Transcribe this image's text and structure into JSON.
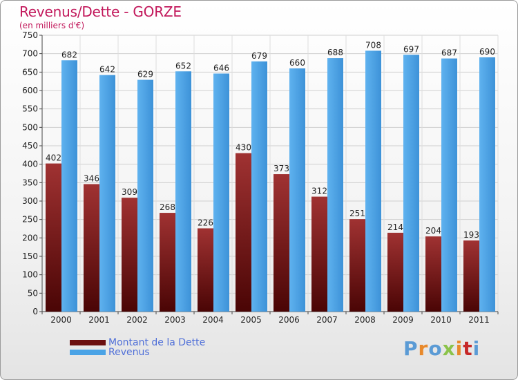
{
  "header": {
    "title": "Revenus/Dette - GORZE",
    "subtitle": "(en milliers d'€)"
  },
  "logo": {
    "text": "Proxiti",
    "letter_colors": [
      "#5b9bd5",
      "#e8892b",
      "#5b9bd5",
      "#8bc34a",
      "#e8892b",
      "#c62828",
      "#5b9bd5"
    ]
  },
  "colors": {
    "dette": "#7a1717",
    "revenus": "#4aa3e6",
    "axis_text": "#222222",
    "title": "#c2185b",
    "legend_text": "#4f6fd8"
  },
  "chart_data": {
    "type": "bar",
    "categories": [
      "2000",
      "2001",
      "2002",
      "2003",
      "2004",
      "2005",
      "2006",
      "2007",
      "2008",
      "2009",
      "2010",
      "2011"
    ],
    "series": [
      {
        "name": "Montant de la Dette",
        "values": [
          402,
          346,
          309,
          268,
          226,
          430,
          373,
          312,
          251,
          214,
          204,
          193
        ]
      },
      {
        "name": "Revenus",
        "values": [
          682,
          642,
          629,
          652,
          646,
          679,
          660,
          688,
          708,
          697,
          687,
          690
        ]
      }
    ],
    "title": "Revenus/Dette - GORZE",
    "ylabel": "(en milliers d'€)",
    "ylim": [
      0,
      750
    ],
    "yticks": [
      0,
      50,
      100,
      150,
      200,
      250,
      300,
      350,
      400,
      450,
      500,
      550,
      600,
      650,
      700,
      750
    ],
    "grid": true,
    "legend": "bottom-left"
  }
}
